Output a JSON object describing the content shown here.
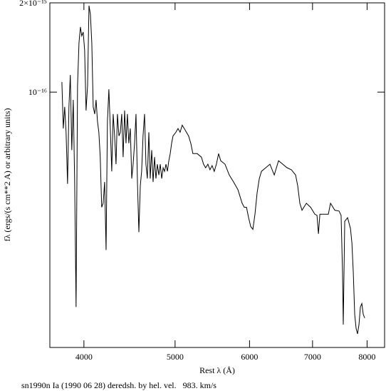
{
  "chart_data": {
    "type": "line",
    "xlabel": "Rest λ (Å)",
    "ylabel": "fλ (ergs/(s cm**2 A) or arbitrary units)",
    "caption": "sn1990n Ia (1990 06 28) deredsh. by hel. vel.   983. km/s",
    "color": "#000000",
    "xlog": true,
    "ylog": true,
    "xlim": [
      3680,
      8350
    ],
    "ylim": [
      1.9e-20,
      2e-15
    ],
    "xticks": [
      4000,
      5000,
      6000,
      7000,
      8000
    ],
    "yticks": [
      {
        "value": 2e-15,
        "label": "2×10⁻¹⁵"
      },
      {
        "value": 1e-16,
        "label": "10⁻¹⁶"
      }
    ],
    "x": [
      3790,
      3803,
      3816,
      3829,
      3843,
      3856,
      3869,
      3883,
      3897,
      3910,
      3924,
      3938,
      3952,
      3966,
      3979,
      3993,
      4007,
      4021,
      4036,
      4050,
      4064,
      4078,
      4092,
      4107,
      4121,
      4135,
      4149,
      4163,
      4178,
      4193,
      4208,
      4223,
      4237,
      4252,
      4267,
      4282,
      4297,
      4312,
      4327,
      4342,
      4358,
      4373,
      4388,
      4403,
      4419,
      4434,
      4449,
      4465,
      4481,
      4497,
      4512,
      4528,
      4544,
      4560,
      4576,
      4592,
      4607,
      4623,
      4640,
      4656,
      4672,
      4689,
      4705,
      4722,
      4738,
      4755,
      4771,
      4788,
      4805,
      4822,
      4839,
      4856,
      4873,
      4890,
      4907,
      4924,
      4941,
      4958,
      4975,
      5010,
      5036,
      5062,
      5088,
      5114,
      5141,
      5168,
      5196,
      5223,
      5278,
      5333,
      5361,
      5389,
      5418,
      5446,
      5474,
      5503,
      5532,
      5562,
      5591,
      5650,
      5709,
      5770,
      5831,
      5892,
      5923,
      5955,
      5986,
      6017,
      6049,
      6080,
      6112,
      6145,
      6177,
      6242,
      6307,
      6374,
      6441,
      6508,
      6577,
      6646,
      6716,
      6751,
      6786,
      6822,
      6895,
      6967,
      7040,
      7077,
      7102,
      7127,
      7201,
      7276,
      7315,
      7392,
      7469,
      7507,
      7533,
      7547,
      7574,
      7627,
      7681,
      7708,
      7734,
      7761,
      7788,
      7815,
      7843,
      7870,
      7898,
      7925,
      7953
    ],
    "values": [
      1.4e-16,
      2.95e-17,
      6.1e-17,
      2.6e-17,
      4.6e-18,
      6.1e-17,
      1.78e-16,
      1.43e-17,
      7.7e-17,
      5.5e-18,
      7.4e-20,
      1.24e-16,
      5.2e-16,
      8.9e-16,
      6.6e-16,
      7.5e-16,
      4.1e-16,
      5.4e-17,
      1.24e-16,
      1.82e-15,
      1.36e-15,
      5.2e-16,
      6.1e-17,
      4.8e-17,
      7.7e-17,
      3.75e-17,
      2.6e-17,
      1.13e-17,
      2.1e-18,
      2.4e-18,
      4.9e-18,
      5e-19,
      3.75e-17,
      1.1e-16,
      2.95e-17,
      7e-18,
      4.8e-17,
      2.3e-17,
      8.9e-18,
      4.8e-17,
      2.3e-17,
      2.6e-17,
      4.8e-17,
      1.13e-17,
      5.4e-17,
      1.8e-17,
      4.8e-17,
      1.8e-17,
      2.95e-17,
      5.5e-18,
      8.9e-18,
      1.8e-17,
      4.8e-17,
      4.9e-18,
      9.1e-19,
      4.3e-18,
      7e-18,
      2.3e-17,
      4.8e-17,
      8.9e-18,
      5.5e-18,
      2.6e-17,
      5.5e-18,
      1.43e-17,
      4.9e-18,
      1.13e-17,
      5.5e-18,
      8.9e-18,
      6.2e-18,
      8.9e-18,
      5.5e-18,
      7.9e-18,
      7e-18,
      8.9e-18,
      7e-18,
      1e-17,
      1.27e-17,
      1.8e-17,
      2.3e-17,
      2.6e-17,
      2.95e-17,
      2.6e-17,
      3.3e-17,
      2.95e-17,
      2.6e-17,
      2.3e-17,
      1.8e-17,
      1.27e-17,
      1.27e-17,
      1.13e-17,
      8.9e-18,
      7.9e-18,
      8.9e-18,
      7.4e-18,
      8.5e-18,
      7e-18,
      8.9e-18,
      1.27e-17,
      1e-17,
      8.9e-18,
      6.2e-18,
      4.9e-18,
      3.8e-18,
      2.4e-18,
      2.1e-18,
      2.1e-18,
      1.48e-18,
      1.1e-18,
      1e-18,
      1.66e-18,
      3.4e-18,
      5.5e-18,
      7e-18,
      7.9e-18,
      8.9e-18,
      6.2e-18,
      1e-17,
      8.9e-18,
      7.9e-18,
      7.4e-18,
      6.2e-18,
      4.3e-18,
      2.4e-18,
      1.9e-18,
      2.4e-18,
      2.1e-18,
      1.66e-18,
      1.6e-18,
      8.6e-19,
      1.66e-18,
      1.66e-18,
      1.66e-18,
      2.4e-18,
      1.9e-18,
      1.85e-18,
      1.6e-18,
      2.4e-19,
      4.1e-20,
      1.31e-18,
      1.48e-18,
      1.03e-18,
      6.4e-19,
      2.4e-19,
      5.8e-20,
      3.6e-20,
      3e-20,
      4.1e-20,
      7.4e-20,
      8.3e-20,
      5.8e-20,
      5.1e-20
    ]
  }
}
